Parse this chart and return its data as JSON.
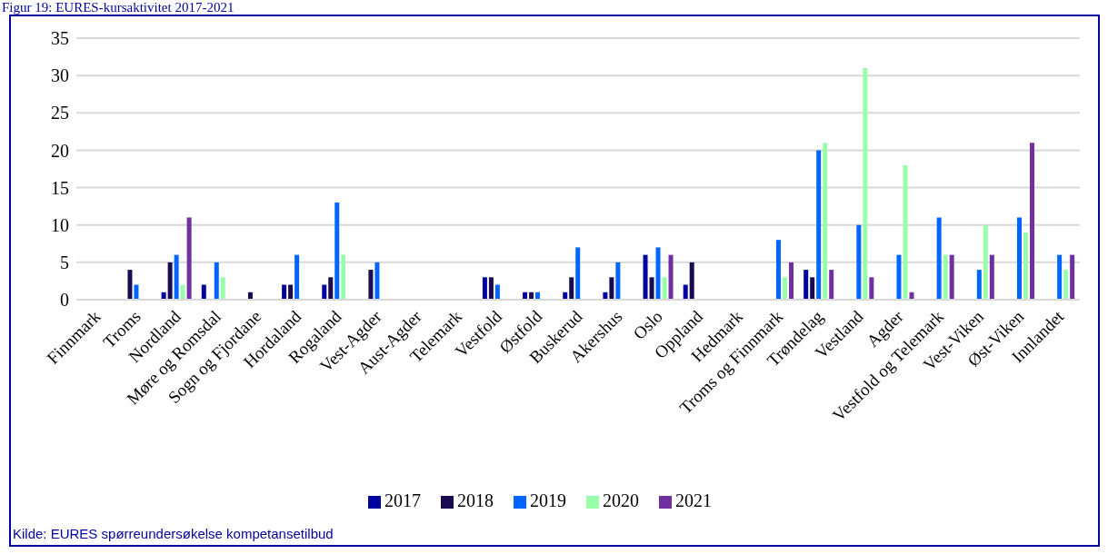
{
  "chart_data": {
    "type": "bar",
    "title": "Figur 19: EURES-kursaktivitet 2017-2021",
    "categories": [
      "Finnmark",
      "Troms",
      "Nordland",
      "Møre og Romsdal",
      "Sogn og Fjordane",
      "Hordaland",
      "Rogaland",
      "Vest-Agder",
      "Aust-Agder",
      "Telemark",
      "Vestfold",
      "Østfold",
      "Buskerud",
      "Akershus",
      "Oslo",
      "Oppland",
      "Hedmark",
      "Troms og Finnmark",
      "Trøndelag",
      "Vestland",
      "Agder",
      "Vestfold og Telemark",
      "Vest-Viken",
      "Øst-Viken",
      "Innlandet"
    ],
    "series": [
      {
        "name": "2017",
        "color": "#0000a0",
        "values": [
          null,
          null,
          1,
          2,
          null,
          2,
          2,
          null,
          null,
          null,
          3,
          1,
          1,
          1,
          6,
          2,
          null,
          null,
          4,
          null,
          null,
          null,
          null,
          null,
          null
        ]
      },
      {
        "name": "2018",
        "color": "#1a0a50",
        "values": [
          null,
          4,
          5,
          null,
          1,
          2,
          3,
          4,
          null,
          null,
          3,
          1,
          3,
          3,
          3,
          5,
          null,
          null,
          3,
          null,
          null,
          null,
          null,
          null,
          null
        ]
      },
      {
        "name": "2019",
        "color": "#0066ff",
        "values": [
          null,
          2,
          6,
          5,
          null,
          6,
          13,
          5,
          null,
          null,
          2,
          1,
          7,
          5,
          7,
          null,
          null,
          8,
          20,
          10,
          6,
          11,
          4,
          11,
          6
        ]
      },
      {
        "name": "2020",
        "color": "#99ffaa",
        "values": [
          null,
          null,
          2,
          3,
          null,
          null,
          6,
          null,
          null,
          null,
          null,
          null,
          null,
          null,
          3,
          null,
          null,
          3,
          21,
          31,
          18,
          6,
          10,
          9,
          4
        ]
      },
      {
        "name": "2021",
        "color": "#7030a0",
        "values": [
          null,
          null,
          11,
          null,
          null,
          null,
          null,
          null,
          null,
          null,
          null,
          null,
          null,
          null,
          6,
          null,
          null,
          5,
          4,
          3,
          1,
          6,
          6,
          21,
          6
        ]
      }
    ],
    "ylim": [
      0,
      35
    ],
    "yticks": [
      0,
      5,
      10,
      15,
      20,
      25,
      30,
      35
    ],
    "grid": "y",
    "legend": "bottom",
    "annotations": [
      "Kilde: EURES spørreundersøkelse kompetansetilbud"
    ]
  }
}
